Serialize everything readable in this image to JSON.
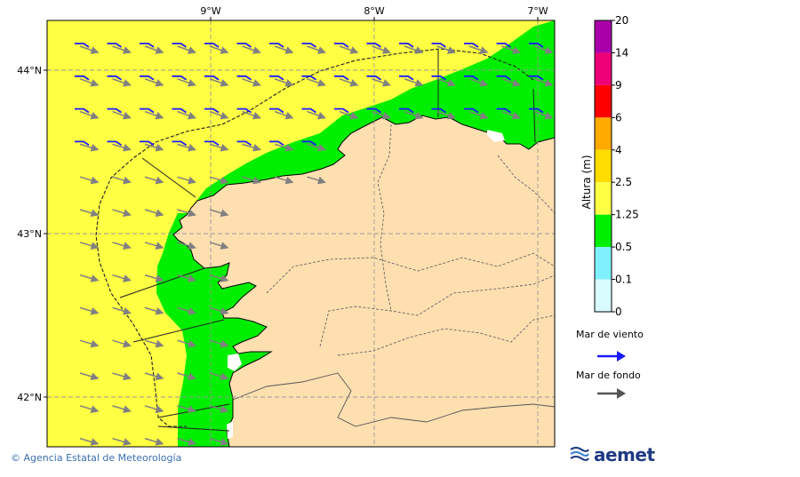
{
  "map": {
    "lon_labels": [
      "9°W",
      "8°W",
      "7°W"
    ],
    "lat_labels": [
      "44°N",
      "43°N",
      "42°N"
    ],
    "colors": {
      "sea_yellow": "#ffff44",
      "sea_green": "#00ee00",
      "land": "#fddfb0",
      "white": "#ffffff",
      "wind_arrow": "#1a1aff",
      "swell_arrow": "#808080"
    }
  },
  "legend": {
    "title": "Altura (m)",
    "levels": [
      "20",
      "14",
      "9",
      "6",
      "4",
      "2.5",
      "1.25",
      "0.5",
      "0.1",
      "0"
    ],
    "colors": [
      "#aa00aa",
      "#ee0077",
      "#ff0000",
      "#ffaa00",
      "#ffdd00",
      "#ffff44",
      "#00ee00",
      "#80f0ff",
      "#d8fcff"
    ],
    "wind_sea_label": "Mar de viento",
    "swell_label": "Mar de fondo"
  },
  "footer": {
    "credit": "© Agencia Estatal de Meteorología",
    "logo_text": "aemet"
  }
}
